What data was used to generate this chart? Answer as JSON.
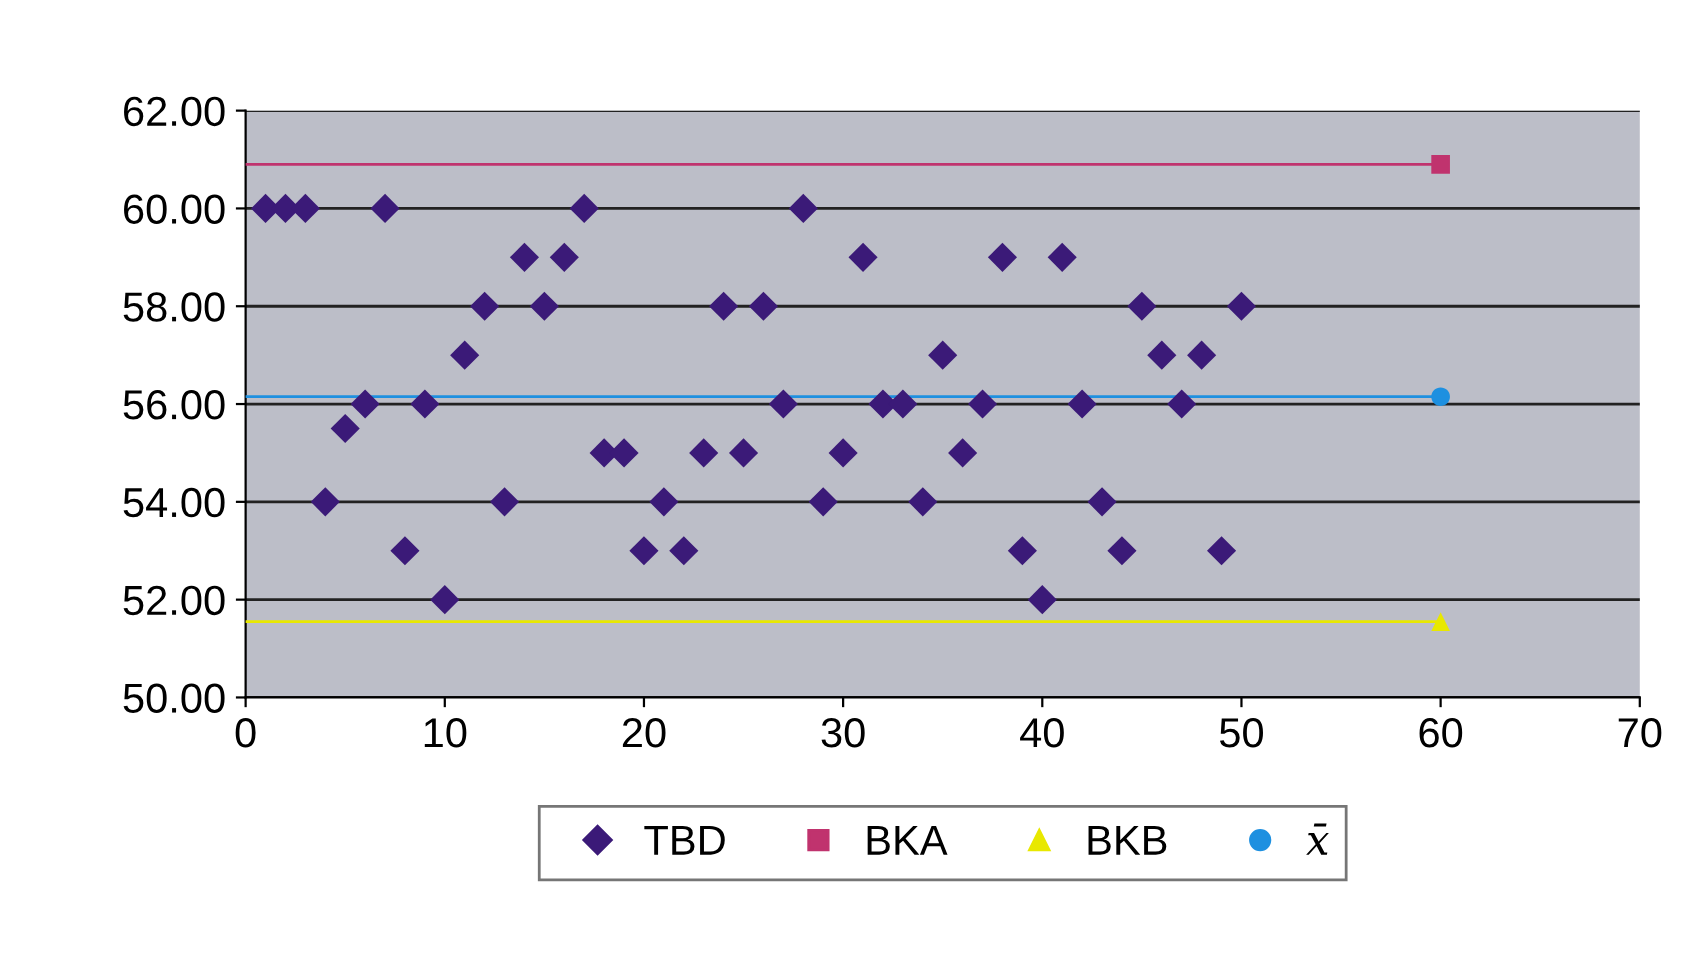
{
  "chart_data": {
    "type": "scatter",
    "xlim": [
      0,
      70
    ],
    "xticks": [
      0,
      10,
      20,
      30,
      40,
      50,
      60,
      70
    ],
    "ylim": [
      50,
      62
    ],
    "yticks": [
      {
        "value": 50,
        "label": "50.00"
      },
      {
        "value": 52,
        "label": "52.00"
      },
      {
        "value": 54,
        "label": "54.00"
      },
      {
        "value": 56,
        "label": "56.00"
      },
      {
        "value": 58,
        "label": "58.00"
      },
      {
        "value": 60,
        "label": "60.00"
      },
      {
        "value": 62,
        "label": "62.00"
      }
    ],
    "grid": "y",
    "legend": "bottom",
    "series": [
      {
        "name": "TBD",
        "marker": "diamond",
        "color": "#3b1a78",
        "x": [
          1,
          2,
          3,
          4,
          5,
          6,
          7,
          8,
          9,
          10,
          11,
          12,
          13,
          14,
          15,
          16,
          17,
          18,
          19,
          20,
          21,
          22,
          23,
          24,
          25,
          26,
          27,
          28,
          29,
          30,
          31,
          32,
          33,
          34,
          35,
          36,
          37,
          38,
          39,
          40,
          41,
          42,
          43,
          44,
          45,
          46,
          47,
          48,
          49,
          50
        ],
        "values": [
          60,
          60,
          60,
          54,
          55.5,
          56,
          60,
          53,
          56,
          52,
          57,
          58,
          54,
          59,
          58,
          59,
          60,
          55,
          55,
          53,
          54,
          53,
          55,
          58,
          55,
          58,
          56,
          60,
          54,
          55,
          59,
          56,
          56,
          54,
          57,
          55,
          56,
          59,
          53,
          52,
          59,
          56,
          54,
          53,
          58,
          57,
          56,
          57,
          53,
          58
        ]
      },
      {
        "name": "BKA",
        "type": "line",
        "marker": "square",
        "color": "#c0336e",
        "x": [
          0,
          60
        ],
        "values": [
          60.9,
          60.9
        ]
      },
      {
        "name": "BKB",
        "type": "line",
        "marker": "triangle",
        "color": "#e8e800",
        "x": [
          0,
          60
        ],
        "values": [
          51.55,
          51.55
        ]
      },
      {
        "name": "x̄",
        "type": "line",
        "marker": "circle",
        "color": "#1e90e0",
        "x": [
          0,
          60
        ],
        "values": [
          56.15,
          56.15
        ]
      }
    ]
  }
}
